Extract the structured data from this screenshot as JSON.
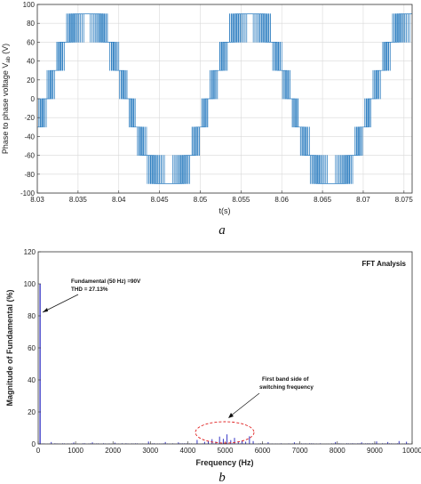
{
  "chart_data": [
    {
      "type": "line",
      "panel_label": "a",
      "xlabel": "t(s)",
      "ylabel_main": "Phase to phase voltage V",
      "ylabel_sub": "ab",
      "ylabel_unit": " (V)",
      "xlim": [
        8.03,
        8.076
      ],
      "ylim": [
        -100,
        100
      ],
      "xticks": [
        8.03,
        8.035,
        8.04,
        8.045,
        8.05,
        8.055,
        8.06,
        8.065,
        8.07,
        8.075
      ],
      "xtick_labels": [
        "8.03",
        "8.035",
        "8.04",
        "8.045",
        "8.05",
        "8.055",
        "8.06",
        "8.065",
        "8.07",
        "8.075"
      ],
      "yticks": [
        -100,
        -80,
        -60,
        -40,
        -20,
        0,
        20,
        40,
        60,
        80,
        100
      ],
      "ytick_labels": [
        "-100",
        "-80",
        "-60",
        "-40",
        "-20",
        "0",
        "20",
        "40",
        "60",
        "80",
        "100"
      ],
      "grid": true,
      "color": "#2f7fc1",
      "signal": {
        "fundamental_hz": 50,
        "t0": 8.03,
        "phase_at_t0_deg": 340,
        "step_size_v": 30,
        "peak_v": 90,
        "levels": [
          -90,
          -60,
          -30,
          0,
          30,
          60,
          90
        ]
      }
    },
    {
      "type": "bar",
      "panel_label": "b",
      "title": "FFT Analysis",
      "xlabel": "Frequency (Hz)",
      "ylabel": "Magnitude of Fundamental (%)",
      "xlim": [
        0,
        10000
      ],
      "ylim": [
        0,
        120
      ],
      "xticks": [
        0,
        1000,
        2000,
        3000,
        4000,
        5000,
        6000,
        7000,
        8000,
        9000,
        10000
      ],
      "xtick_labels": [
        "0",
        "1000",
        "2000",
        "3000",
        "4000",
        "5000",
        "6000",
        "7000",
        "8000",
        "9000",
        "10000"
      ],
      "yticks": [
        0,
        20,
        40,
        60,
        80,
        100,
        120
      ],
      "ytick_labels": [
        "0",
        "20",
        "40",
        "60",
        "80",
        "100",
        "120"
      ],
      "grid": false,
      "color": "#1f1fbf",
      "harmonics_hz": [
        50,
        350,
        950,
        1450,
        2050,
        2950,
        3400,
        3750,
        4250,
        4450,
        4550,
        4650,
        4750,
        4850,
        4950,
        5050,
        5150,
        5250,
        5350,
        5450,
        5550,
        5650,
        5750,
        6150,
        6850,
        7950,
        8650,
        9050,
        9350,
        9650,
        9850
      ],
      "harmonics_pct": [
        100,
        1.2,
        0.9,
        1.0,
        0.8,
        1.5,
        1.2,
        1.0,
        2.5,
        1.3,
        2.0,
        3.0,
        1.5,
        4.6,
        3.2,
        6.0,
        2.4,
        3.8,
        1.6,
        2.2,
        1.4,
        4.8,
        1.8,
        1.1,
        1.0,
        1.2,
        1.0,
        1.6,
        1.2,
        1.8,
        1.4
      ],
      "annotations": {
        "fundamental_line1": "Fundamental (50 Hz) =90V",
        "fundamental_line2": "THD = 27.13%",
        "band_line1": "First band side of",
        "band_line2": "switching frequency"
      }
    }
  ]
}
